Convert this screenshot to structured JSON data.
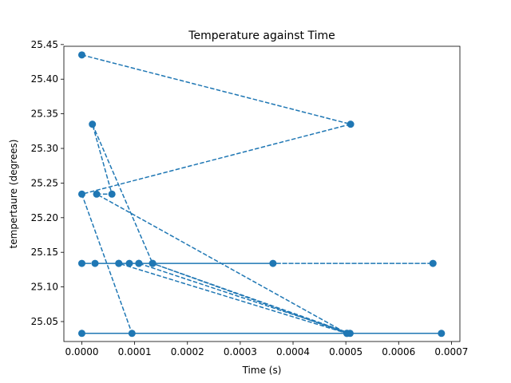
{
  "chart_data": {
    "type": "line",
    "title": "Temperature against Time",
    "xlabel": "Time (s)",
    "ylabel": "tempertaure (degrees)",
    "xlim": [
      -3.4e-05,
      0.000716
    ],
    "ylim": [
      25.0212,
      25.4475
    ],
    "x_ticks": [
      0.0,
      0.0001,
      0.0002,
      0.0003,
      0.0004,
      0.0005,
      0.0006,
      0.0007
    ],
    "x_tick_labels": [
      "0.0000",
      "0.0001",
      "0.0002",
      "0.0003",
      "0.0004",
      "0.0005",
      "0.0006",
      "0.0007"
    ],
    "y_ticks": [
      25.05,
      25.1,
      25.15,
      25.2,
      25.25,
      25.3,
      25.35,
      25.4,
      25.45
    ],
    "y_tick_labels": [
      "25.05",
      "25.10",
      "25.15",
      "25.20",
      "25.25",
      "25.30",
      "25.35",
      "25.40",
      "25.45"
    ],
    "series": [
      {
        "color": "#1f77b4",
        "line_style": "dashed",
        "marker": "circle",
        "points": [
          {
            "x": 0.0,
            "y": 25.435
          },
          {
            "x": 0.000509,
            "y": 25.335
          },
          {
            "x": 0.0,
            "y": 25.234
          },
          {
            "x": 9.5e-05,
            "y": 25.033
          },
          {
            "x": 0.000681,
            "y": 25.033
          },
          {
            "x": 0.0,
            "y": 25.033
          },
          {
            "x": 0.000502,
            "y": 25.033
          },
          {
            "x": 2.8e-05,
            "y": 25.234
          },
          {
            "x": 5.7e-05,
            "y": 25.234
          },
          {
            "x": 2e-05,
            "y": 25.335
          },
          {
            "x": 0.000134,
            "y": 25.134
          },
          {
            "x": 0.0,
            "y": 25.134
          },
          {
            "x": 0.000665,
            "y": 25.134
          },
          {
            "x": 2.5e-05,
            "y": 25.134
          },
          {
            "x": 7e-05,
            "y": 25.134
          },
          {
            "x": 9e-05,
            "y": 25.134
          },
          {
            "x": 0.000108,
            "y": 25.134
          },
          {
            "x": 0.000362,
            "y": 25.134
          },
          {
            "x": 0.000108,
            "y": 25.134
          },
          {
            "x": 0.000508,
            "y": 25.033
          },
          {
            "x": 0.000134,
            "y": 25.134
          },
          {
            "x": 0.000502,
            "y": 25.033
          },
          {
            "x": 7e-05,
            "y": 25.134
          }
        ]
      }
    ]
  }
}
